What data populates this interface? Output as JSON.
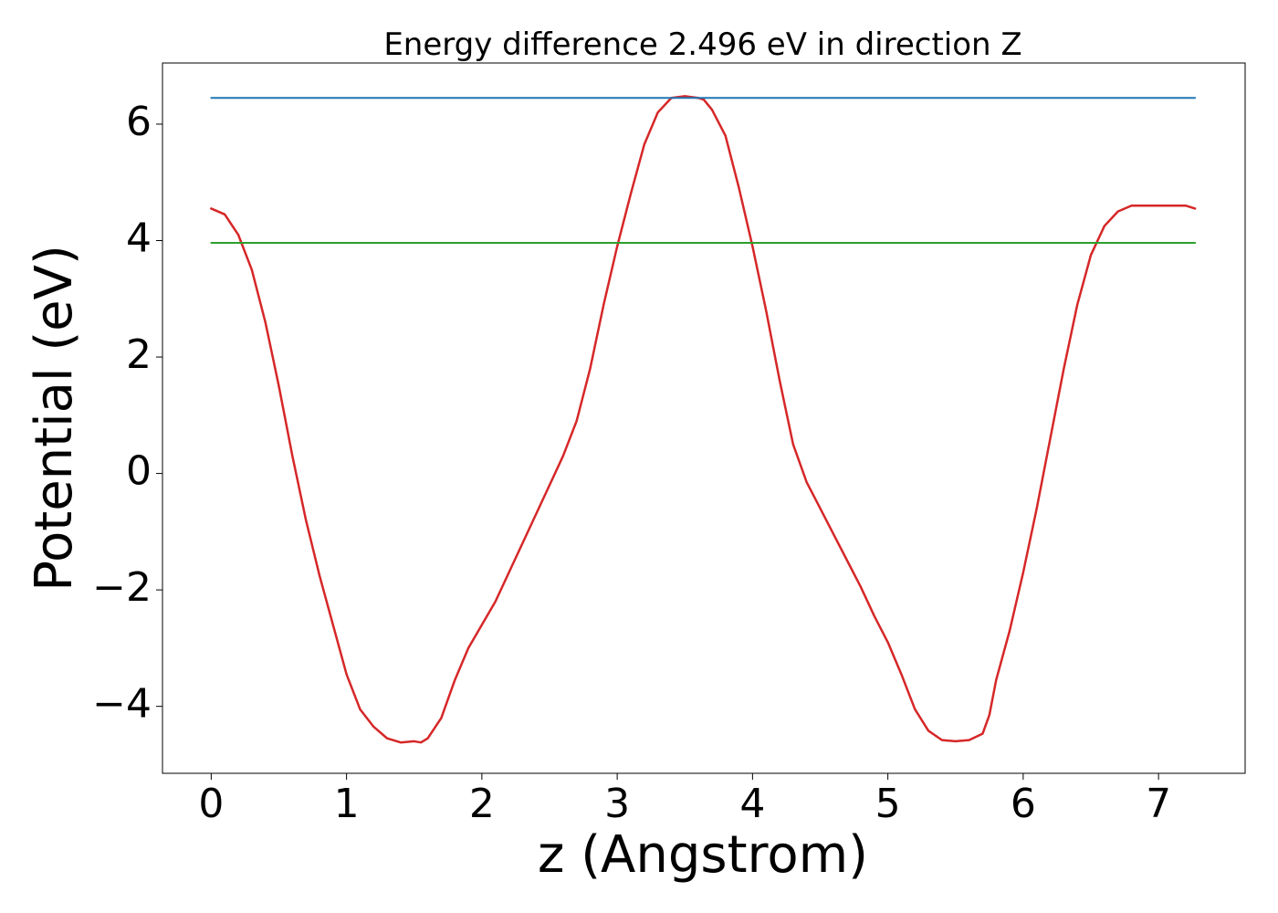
{
  "chart_data": {
    "type": "line",
    "title": "Energy difference 2.496 eV in direction Z",
    "xlabel": "z (Angstrom)",
    "ylabel": "Potential (eV)",
    "xlim": [
      -0.36,
      7.64
    ],
    "ylim": [
      -5.15,
      7.05
    ],
    "xticks": [
      0,
      1,
      2,
      3,
      4,
      5,
      6,
      7
    ],
    "xtick_labels": [
      "0",
      "1",
      "2",
      "3",
      "4",
      "5",
      "6",
      "7"
    ],
    "yticks": [
      -4,
      -2,
      0,
      2,
      4,
      6
    ],
    "ytick_labels": [
      "−4",
      "−2",
      "0",
      "2",
      "4",
      "6"
    ],
    "grid": false,
    "series": [
      {
        "color": "#d62728",
        "x": [
          0,
          0.1,
          0.2,
          0.3,
          0.4,
          0.5,
          0.6,
          0.7,
          0.8,
          0.9,
          1.0,
          1.1,
          1.2,
          1.3,
          1.4,
          1.5,
          1.55,
          1.6,
          1.7,
          1.8,
          1.9,
          2.0,
          2.1,
          2.2,
          2.3,
          2.4,
          2.5,
          2.6,
          2.7,
          2.8,
          2.9,
          3.0,
          3.1,
          3.2,
          3.3,
          3.4,
          3.5,
          3.6,
          3.64,
          3.7,
          3.8,
          3.9,
          4.0,
          4.1,
          4.2,
          4.3,
          4.4,
          4.5,
          4.6,
          4.7,
          4.8,
          4.9,
          5.0,
          5.1,
          5.2,
          5.3,
          5.4,
          5.5,
          5.6,
          5.7,
          5.75,
          5.8,
          5.9,
          6.0,
          6.1,
          6.2,
          6.3,
          6.4,
          6.5,
          6.6,
          6.7,
          6.8,
          6.9,
          7.0,
          7.1,
          7.2,
          7.27
        ],
        "y": [
          4.55,
          4.45,
          4.1,
          3.5,
          2.6,
          1.5,
          0.3,
          -0.8,
          -1.75,
          -2.6,
          -3.45,
          -4.05,
          -4.35,
          -4.55,
          -4.62,
          -4.6,
          -4.62,
          -4.55,
          -4.2,
          -3.55,
          -3.0,
          -2.6,
          -2.2,
          -1.7,
          -1.2,
          -0.7,
          -0.2,
          0.3,
          0.9,
          1.8,
          2.9,
          3.9,
          4.8,
          5.65,
          6.2,
          6.45,
          6.48,
          6.45,
          6.42,
          6.25,
          5.8,
          4.9,
          3.9,
          2.8,
          1.6,
          0.5,
          -0.15,
          -0.6,
          -1.05,
          -1.5,
          -1.95,
          -2.45,
          -2.9,
          -3.45,
          -4.05,
          -4.42,
          -4.58,
          -4.6,
          -4.58,
          -4.47,
          -4.15,
          -3.55,
          -2.7,
          -1.7,
          -0.6,
          0.6,
          1.8,
          2.9,
          3.75,
          4.25,
          4.5,
          4.6,
          4.6,
          4.6,
          4.6,
          4.6,
          4.55
        ]
      },
      {
        "color": "#1f77b4",
        "x": [
          0,
          7.27
        ],
        "y": [
          6.45,
          6.45
        ]
      },
      {
        "color": "#2ca02c",
        "x": [
          0,
          7.27
        ],
        "y": [
          3.96,
          3.96
        ]
      }
    ]
  }
}
